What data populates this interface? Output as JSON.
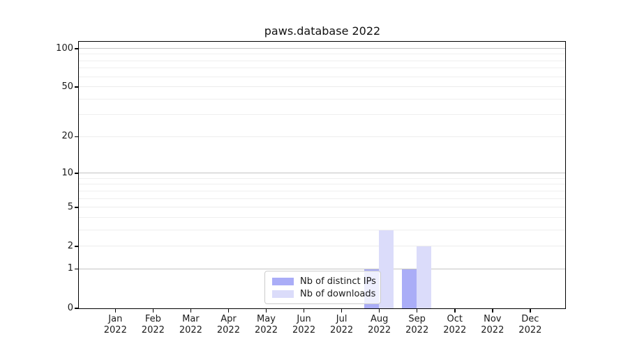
{
  "title": "paws.database 2022",
  "chart_data": {
    "type": "bar",
    "title": "paws.database 2022",
    "xlabel": "",
    "ylabel": "",
    "categories": [
      {
        "month": "Jan",
        "year": "2022"
      },
      {
        "month": "Feb",
        "year": "2022"
      },
      {
        "month": "Mar",
        "year": "2022"
      },
      {
        "month": "Apr",
        "year": "2022"
      },
      {
        "month": "May",
        "year": "2022"
      },
      {
        "month": "Jun",
        "year": "2022"
      },
      {
        "month": "Jul",
        "year": "2022"
      },
      {
        "month": "Aug",
        "year": "2022"
      },
      {
        "month": "Sep",
        "year": "2022"
      },
      {
        "month": "Oct",
        "year": "2022"
      },
      {
        "month": "Nov",
        "year": "2022"
      },
      {
        "month": "Dec",
        "year": "2022"
      }
    ],
    "series": [
      {
        "name": "Nb of distinct IPs",
        "color": "#aaadf7",
        "values": [
          0,
          0,
          0,
          0,
          0,
          0,
          0,
          1,
          1,
          0,
          0,
          0
        ]
      },
      {
        "name": "Nb of downloads",
        "color": "#dbdcfa",
        "values": [
          0,
          0,
          0,
          0,
          0,
          0,
          0,
          3,
          2,
          0,
          0,
          0
        ]
      }
    ],
    "yscale": "log1p",
    "ylim": [
      0,
      110
    ],
    "yticks": [
      0,
      1,
      2,
      5,
      10,
      20,
      50,
      100
    ],
    "minor_yticks": [
      3,
      4,
      6,
      7,
      8,
      9,
      30,
      40,
      60,
      70,
      80,
      90
    ],
    "decade_ticks": [
      1,
      10,
      100
    ],
    "grid": true,
    "legend_position": "lower center"
  },
  "colors": {
    "bar_distinct_ips": "#aaadf7",
    "bar_downloads": "#dbdcfa",
    "grid_decade": "#c4c4c4",
    "grid_minor": "#efefef",
    "spine": "#000000",
    "text": "#1a1a1a"
  }
}
